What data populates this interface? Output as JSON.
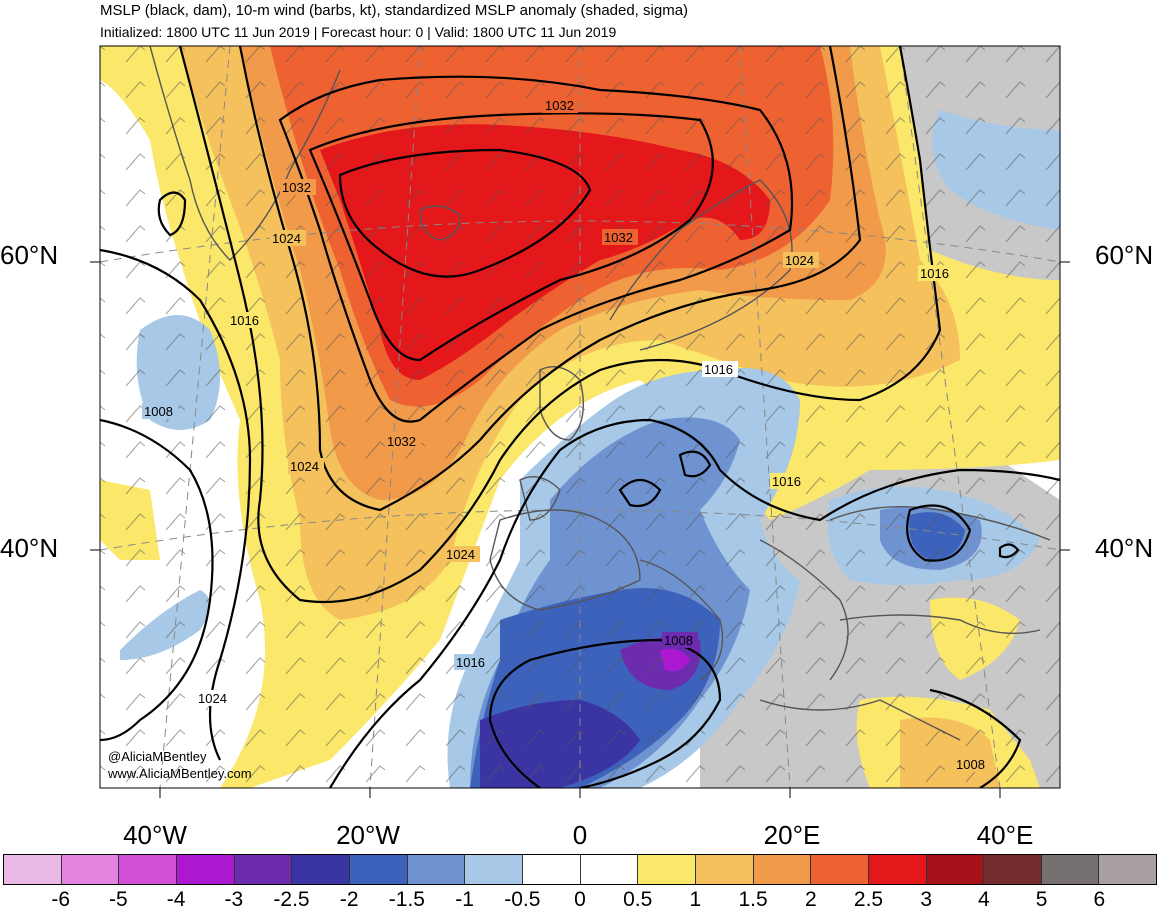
{
  "header": {
    "title": "MSLP (black, dam), 10-m wind (barbs, kt), standardized MSLP anomaly (shaded, sigma)",
    "subtitle": "Initialized: 1800 UTC 11 Jun 2019 | Forecast hour: 0 | Valid: 1800 UTC 11 Jun 2019"
  },
  "map": {
    "lat_labels": {
      "left_60": "60°N",
      "left_40": "40°N",
      "right_60": "60°N",
      "right_40": "40°N"
    },
    "lon_labels": [
      "40°W",
      "20°W",
      "0",
      "20°E",
      "40°E"
    ],
    "contour_labels": {
      "c1": "1032",
      "c2": "1032",
      "c3": "1032",
      "c4": "1032",
      "c5": "1024",
      "c6": "1024",
      "c7": "1024",
      "c8": "1024",
      "c9": "1024",
      "c10": "1016",
      "c11": "1016",
      "c12": "1016",
      "c13": "1016",
      "c14": "1016",
      "c15": "1008",
      "c16": "1008",
      "c17": "1008"
    },
    "credit_handle": "@AliciaMBentley",
    "credit_url": "www.AliciaMBentley.com"
  },
  "colorbar": {
    "labels": [
      "-6",
      "-5",
      "-4",
      "-3",
      "-2.5",
      "-2",
      "-1.5",
      "-1",
      "-0.5",
      "0",
      "0.5",
      "1",
      "1.5",
      "2",
      "2.5",
      "3",
      "4",
      "5",
      "6"
    ],
    "colors": [
      "#ebb9e6",
      "#e385e0",
      "#d44fd8",
      "#ac18cf",
      "#6d2cb0",
      "#3b35a3",
      "#3d62bc",
      "#6f93d0",
      "#a7c8e6",
      "#ffffff",
      "#ffffff",
      "#fbe76a",
      "#f4c15c",
      "#f19a49",
      "#ee6232",
      "#e4171a",
      "#a7121a",
      "#742c2d",
      "#767070",
      "#a9a1a1"
    ]
  },
  "anomaly_colors": {
    "red": "#e4171a",
    "orange_red": "#ee6232",
    "orange": "#f19a49",
    "light_orange": "#f4c15c",
    "yellow": "#fbe76a",
    "light_blue": "#a7c8e6",
    "blue": "#6f93d0",
    "mid_blue": "#3d62bc",
    "dark_blue": "#3b35a3",
    "purple": "#6d2cb0",
    "magenta": "#ac18cf",
    "grey": "#c8c8c8"
  }
}
